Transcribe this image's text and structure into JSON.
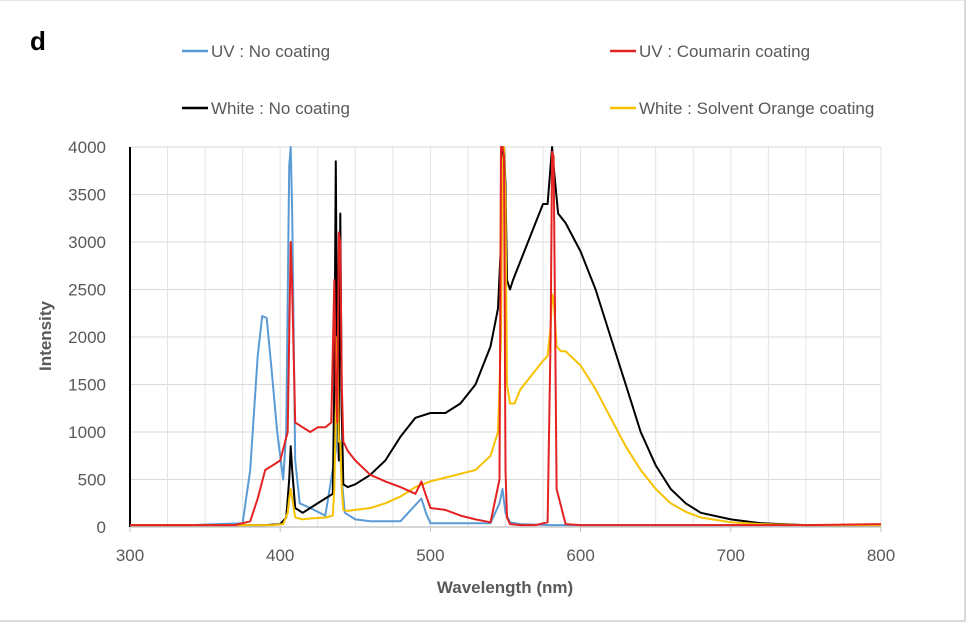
{
  "panel_label": "d",
  "chart_data": {
    "type": "line",
    "title": "",
    "xlabel": "Wavelength (nm)",
    "ylabel": "Intensity",
    "xlim": [
      300,
      800
    ],
    "ylim": [
      0,
      4000
    ],
    "x_ticks": [
      300,
      400,
      500,
      600,
      700,
      800
    ],
    "y_ticks": [
      0,
      500,
      1000,
      1500,
      2000,
      2500,
      3000,
      3500,
      4000
    ],
    "grid": true,
    "legend_position": "top",
    "series": [
      {
        "name": "UV : No coating",
        "color": "#5b9bd5",
        "x": [
          300,
          340,
          375,
          380,
          385,
          388,
          391,
          394,
          398,
          402,
          404,
          406,
          407,
          408,
          410,
          413,
          420,
          430,
          437,
          438,
          439,
          441,
          443,
          450,
          460,
          480,
          494,
          497,
          500,
          510,
          540,
          546,
          548,
          550,
          553,
          560,
          580,
          600,
          650,
          700,
          750,
          800
        ],
        "y": [
          20,
          20,
          40,
          600,
          1800,
          2220,
          2200,
          1700,
          1000,
          500,
          1000,
          3800,
          4000,
          3300,
          700,
          250,
          200,
          120,
          800,
          1350,
          1000,
          500,
          150,
          80,
          60,
          60,
          300,
          150,
          40,
          40,
          40,
          250,
          400,
          150,
          50,
          30,
          20,
          20,
          20,
          20,
          20,
          20
        ]
      },
      {
        "name": "UV :  Coumarin coating",
        "color": "#e52222",
        "x": [
          300,
          370,
          380,
          385,
          390,
          395,
          400,
          405,
          406,
          407,
          408,
          410,
          415,
          420,
          425,
          430,
          434,
          436,
          437,
          438,
          439,
          440,
          441,
          442,
          445,
          450,
          460,
          470,
          480,
          490,
          494,
          496,
          500,
          510,
          520,
          530,
          540,
          546,
          547,
          548,
          549,
          550,
          551,
          553,
          560,
          570,
          578,
          580,
          581,
          582,
          584,
          590,
          600,
          650,
          700,
          750,
          800
        ],
        "y": [
          20,
          20,
          60,
          300,
          600,
          650,
          700,
          1000,
          2000,
          3000,
          2500,
          1100,
          1050,
          1000,
          1050,
          1050,
          1100,
          2600,
          1500,
          1100,
          3100,
          3000,
          1500,
          900,
          800,
          700,
          550,
          480,
          420,
          350,
          480,
          380,
          200,
          180,
          120,
          80,
          50,
          500,
          4000,
          4000,
          3900,
          600,
          100,
          30,
          20,
          20,
          50,
          2000,
          3950,
          3900,
          400,
          30,
          20,
          20,
          20,
          20,
          30
        ]
      },
      {
        "name": "White : No coating",
        "color": "#000000",
        "x": [
          300,
          390,
          400,
          404,
          406,
          407,
          408,
          410,
          415,
          420,
          430,
          435,
          436,
          437,
          438,
          439,
          440,
          441,
          442,
          445,
          450,
          460,
          470,
          480,
          490,
          500,
          510,
          520,
          530,
          540,
          545,
          547,
          548,
          549,
          550,
          551,
          553,
          555,
          560,
          565,
          570,
          575,
          578,
          580,
          581,
          582,
          585,
          590,
          600,
          610,
          620,
          630,
          640,
          650,
          660,
          670,
          680,
          700,
          720,
          750,
          800
        ],
        "y": [
          20,
          20,
          30,
          100,
          500,
          850,
          600,
          200,
          150,
          200,
          300,
          350,
          1500,
          3850,
          1400,
          700,
          3300,
          1200,
          450,
          420,
          450,
          550,
          700,
          950,
          1150,
          1200,
          1200,
          1300,
          1500,
          1900,
          2300,
          3000,
          4000,
          4000,
          3600,
          2600,
          2500,
          2600,
          2800,
          3000,
          3200,
          3400,
          3400,
          3800,
          4000,
          3800,
          3300,
          3200,
          2900,
          2500,
          2000,
          1500,
          1000,
          650,
          400,
          250,
          150,
          80,
          40,
          20,
          20
        ]
      },
      {
        "name": "White : Solvent Orange coating",
        "color": "#f6c200",
        "x": [
          300,
          395,
          402,
          405,
          406,
          407,
          408,
          410,
          415,
          420,
          430,
          435,
          436,
          437,
          438,
          439,
          440,
          441,
          442,
          445,
          450,
          460,
          470,
          480,
          490,
          500,
          510,
          520,
          530,
          540,
          545,
          547,
          548,
          549,
          550,
          551,
          553,
          556,
          560,
          570,
          575,
          578,
          580,
          581,
          582,
          584,
          587,
          590,
          600,
          610,
          620,
          630,
          640,
          650,
          660,
          670,
          680,
          700,
          720,
          750,
          800
        ],
        "y": [
          20,
          20,
          30,
          150,
          300,
          400,
          300,
          100,
          80,
          90,
          100,
          120,
          400,
          1200,
          2000,
          900,
          900,
          400,
          180,
          170,
          180,
          200,
          250,
          320,
          420,
          480,
          520,
          560,
          600,
          750,
          1000,
          2000,
          3800,
          4000,
          3400,
          1500,
          1300,
          1300,
          1450,
          1650,
          1750,
          1800,
          2100,
          2450,
          2400,
          1900,
          1850,
          1850,
          1700,
          1450,
          1150,
          850,
          600,
          400,
          250,
          160,
          100,
          50,
          30,
          20,
          20
        ]
      }
    ]
  }
}
